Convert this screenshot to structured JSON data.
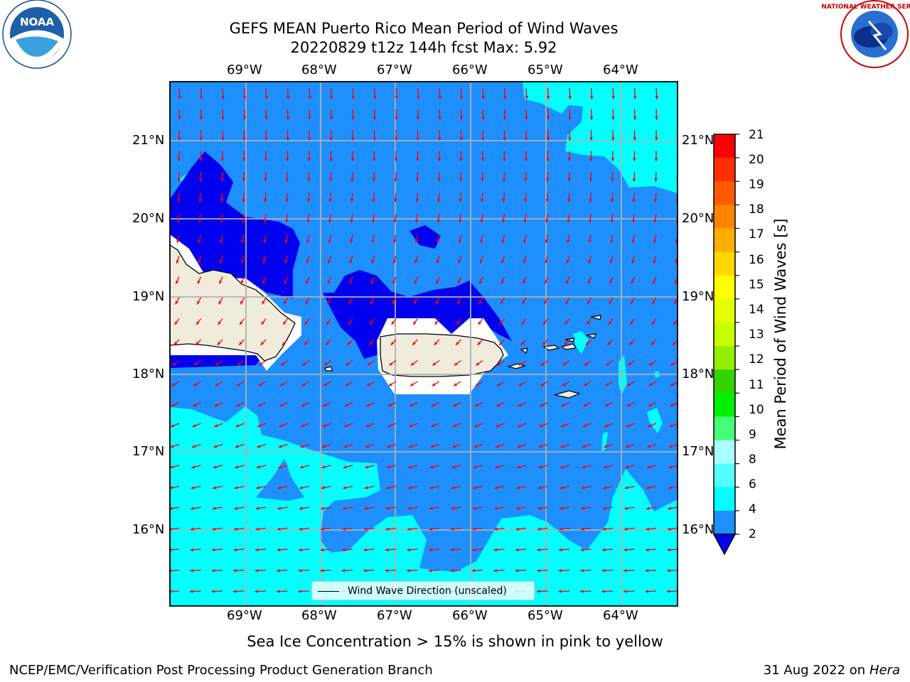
{
  "title": {
    "line1": "GEFS MEAN Puerto Rico Mean Period of Wind Waves",
    "line2": "20220829 t12z 144h fcst   Max: 5.92"
  },
  "lon_labels": [
    "69°W",
    "68°W",
    "67°W",
    "66°W",
    "65°W",
    "64°W"
  ],
  "lat_labels": [
    "21°N",
    "20°N",
    "19°N",
    "18°N",
    "17°N",
    "16°N"
  ],
  "legend": {
    "label": "Wind Wave Direction (unscaled)"
  },
  "colorbar": {
    "title": "Mean Period of Wind Waves [s]",
    "ticks": [
      "21",
      "20",
      "19",
      "18",
      "17",
      "16",
      "15",
      "14",
      "13",
      "12",
      "11",
      "10",
      "9",
      "8",
      "6",
      "4",
      "2"
    ],
    "colors": [
      "#ff0000",
      "#ff2e00",
      "#ff5a00",
      "#ff8400",
      "#ffae00",
      "#ffd700",
      "#ffff00",
      "#e5ff00",
      "#c8ff00",
      "#94f000",
      "#34d400",
      "#00f000",
      "#44ff77",
      "#aaffff",
      "#55ffff",
      "#00ffff",
      "#1e8fff",
      "#0000ff"
    ]
  },
  "map": {
    "colors": {
      "ocean_2_4": "#1e8fff",
      "ocean_4_6": "#00ffff",
      "ocean_lt2": "#0000ee",
      "land": "#efecdc",
      "arrow": "#ff0000"
    },
    "wind_direction": "from east-northeast"
  },
  "note": "Sea Ice Concentration > 15% is shown in pink to yellow",
  "footer": {
    "left": "NCEP/EMC/Verification Post Processing Product Generation Branch",
    "date": "31 Aug 2022 on",
    "machine": "Hera"
  },
  "logos": {
    "left": "NOAA",
    "right": "NATIONAL WEATHER SERVICE"
  }
}
